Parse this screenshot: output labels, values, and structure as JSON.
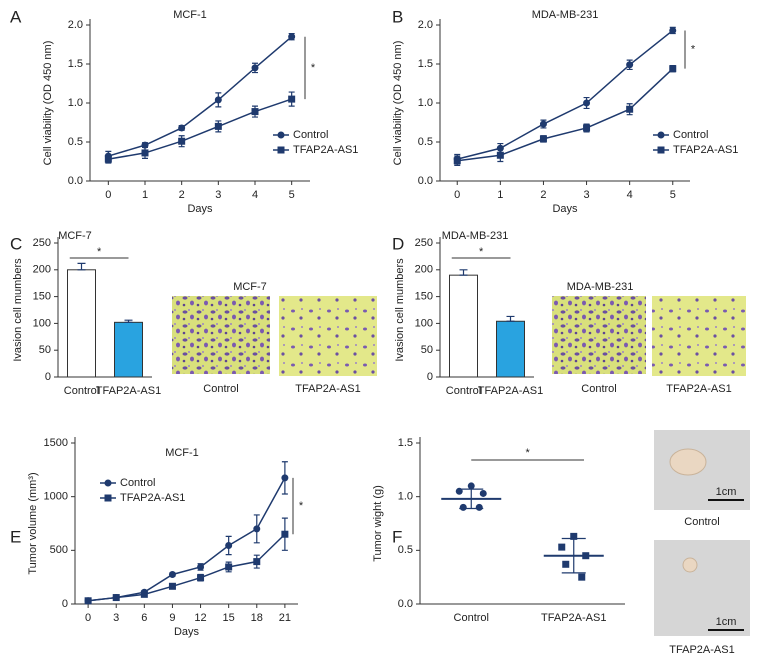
{
  "chart_data": [
    {
      "panel_label": "A",
      "type": "line",
      "title": "MCF-1",
      "xlabel": "Days",
      "ylabel": "Cell viability (OD 450 nm)",
      "x": [
        0,
        1,
        2,
        3,
        4,
        5
      ],
      "xlim": [
        -0.5,
        5.5
      ],
      "xticks": [
        0,
        1,
        2,
        3,
        4,
        5
      ],
      "ylim": [
        0,
        2
      ],
      "yticks": [
        {
          "value": 0,
          "label": "0.0"
        },
        0.5,
        {
          "value": 1,
          "label": "1.0"
        },
        1.5,
        {
          "value": 2,
          "label": "2.0"
        }
      ],
      "series": [
        {
          "name": "Control",
          "color": "#1f3a6e",
          "marker": "circle",
          "values": [
            0.32,
            0.46,
            0.68,
            1.04,
            1.45,
            1.85
          ],
          "errors": [
            0.06,
            0.03,
            0.03,
            0.09,
            0.06,
            0.04
          ]
        },
        {
          "name": "TFAP2A-AS1",
          "color": "#1f3a6e",
          "marker": "square",
          "values": [
            0.28,
            0.36,
            0.51,
            0.7,
            0.89,
            1.05
          ],
          "errors": [
            0.05,
            0.07,
            0.07,
            0.07,
            0.07,
            0.09
          ]
        }
      ],
      "annotation": "*",
      "legend": "lower right"
    },
    {
      "panel_label": "B",
      "type": "line",
      "title": "MDA-MB-231",
      "xlabel": "Days",
      "ylabel": "Cell viability (OD 450 nm)",
      "x": [
        0,
        1,
        2,
        3,
        4,
        5
      ],
      "xlim": [
        -0.4,
        5.4
      ],
      "xticks": [
        0,
        1,
        2,
        3,
        4,
        5
      ],
      "ylim": [
        0,
        2
      ],
      "yticks": [
        {
          "value": 0,
          "label": "0.0"
        },
        0.5,
        {
          "value": 1,
          "label": "1.0"
        },
        1.5,
        {
          "value": 2,
          "label": "2.0"
        }
      ],
      "series": [
        {
          "name": "Control",
          "color": "#1f3a6e",
          "marker": "circle",
          "values": [
            0.28,
            0.42,
            0.73,
            1.0,
            1.49,
            1.93
          ],
          "errors": [
            0.06,
            0.06,
            0.05,
            0.07,
            0.06,
            0.04
          ]
        },
        {
          "name": "TFAP2A-AS1",
          "color": "#1f3a6e",
          "marker": "square",
          "values": [
            0.26,
            0.33,
            0.54,
            0.68,
            0.92,
            1.44
          ],
          "errors": [
            0.06,
            0.08,
            0.04,
            0.05,
            0.07,
            0.04
          ]
        }
      ],
      "annotation": "*",
      "legend": "lower right"
    },
    {
      "panel_label": "C",
      "type": "bar",
      "title": "MCF-7",
      "ylabel": "Ivasion cell mumbers",
      "categories": [
        "Control",
        "TFAP2A-AS1"
      ],
      "values": [
        200,
        102
      ],
      "errors": [
        12,
        4
      ],
      "colors": [
        "#ffffff",
        "#29a3e0"
      ],
      "ylim": [
        0,
        250
      ],
      "yticks": [
        0,
        50,
        100,
        150,
        200,
        250
      ],
      "annotation": "*",
      "image_title": "MCF-7",
      "image_captions": [
        "Control",
        "TFAP2A-AS1"
      ]
    },
    {
      "panel_label": "D",
      "type": "bar",
      "title": "MDA-MB-231",
      "ylabel": "Ivasion cell mumbers",
      "categories": [
        "Control",
        "TFAP2A-AS1"
      ],
      "values": [
        190,
        104
      ],
      "errors": [
        10,
        9
      ],
      "colors": [
        "#ffffff",
        "#29a3e0"
      ],
      "ylim": [
        0,
        250
      ],
      "yticks": [
        0,
        50,
        100,
        150,
        200,
        250
      ],
      "annotation": "*",
      "image_title": "MDA-MB-231",
      "image_captions": [
        "Control",
        "TFAP2A-AS1"
      ]
    },
    {
      "panel_label": "E",
      "type": "line",
      "title": "MCF-1",
      "xlabel": "Days",
      "ylabel": "Tumor volume (mm³)",
      "x": [
        0,
        3,
        6,
        9,
        12,
        15,
        18,
        21
      ],
      "xlim": [
        -1.4,
        22.4
      ],
      "xticks": [
        0,
        3,
        6,
        9,
        12,
        15,
        18,
        21
      ],
      "ylim": [
        0,
        1500
      ],
      "yticks": [
        0,
        500,
        1000,
        1500
      ],
      "series": [
        {
          "name": "Control",
          "color": "#1f3a6e",
          "marker": "circle",
          "values": [
            30,
            60,
            110,
            275,
            345,
            545,
            700,
            1175
          ],
          "errors": [
            5,
            8,
            15,
            15,
            30,
            85,
            130,
            150
          ]
        },
        {
          "name": "TFAP2A-AS1",
          "color": "#1f3a6e",
          "marker": "square",
          "values": [
            30,
            60,
            90,
            165,
            245,
            345,
            395,
            650
          ],
          "errors": [
            5,
            8,
            15,
            15,
            30,
            45,
            60,
            150
          ]
        }
      ],
      "annotation": "*",
      "legend": "upper left"
    },
    {
      "panel_label": "F",
      "type": "dot",
      "ylabel": "Tumor wight (g)",
      "categories": [
        "Control",
        "TFAP2A-AS1"
      ],
      "markers": [
        "circle",
        "square"
      ],
      "color": "#1f3a6e",
      "points": [
        [
          1.1,
          1.05,
          1.03,
          0.9,
          0.9
        ],
        [
          0.63,
          0.53,
          0.45,
          0.37,
          0.25
        ]
      ],
      "means": [
        0.98,
        0.45
      ],
      "sds": [
        0.09,
        0.16
      ],
      "ylim": [
        0,
        1.5
      ],
      "yticks": [
        {
          "value": 0,
          "label": "0.0"
        },
        0.5,
        {
          "value": 1,
          "label": "1.0"
        },
        1.5
      ],
      "annotation": "*",
      "image_captions": [
        "Control",
        "TFAP2A-AS1"
      ],
      "scale_bar": "1cm"
    }
  ]
}
